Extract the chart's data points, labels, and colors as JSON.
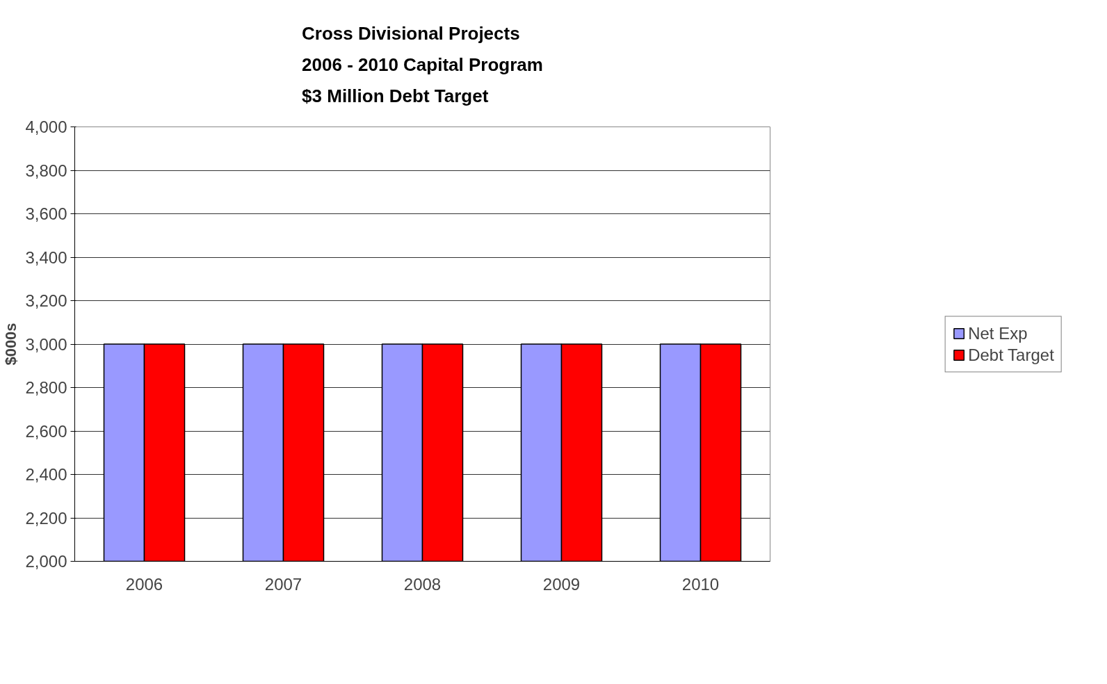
{
  "chart_data": {
    "type": "bar",
    "title": "Cross Divisional Projects\n2006 - 2010 Capital Program\n$3 Million Debt Target",
    "ylabel": "$000s",
    "categories": [
      "2006",
      "2007",
      "2008",
      "2009",
      "2010"
    ],
    "series": [
      {
        "name": "Net Exp",
        "color": "#9999ff",
        "values": [
          3000,
          3000,
          3000,
          3000,
          3000
        ]
      },
      {
        "name": "Debt Target",
        "color": "#ff0000",
        "values": [
          3000,
          3000,
          3000,
          3000,
          3000
        ]
      }
    ],
    "ylim": [
      2000,
      4000
    ],
    "yticks": [
      {
        "value": 2000,
        "label": "2,000"
      },
      {
        "value": 2200,
        "label": "2,200"
      },
      {
        "value": 2400,
        "label": "2,400"
      },
      {
        "value": 2600,
        "label": "2,600"
      },
      {
        "value": 2800,
        "label": "2,800"
      },
      {
        "value": 3000,
        "label": "3,000"
      },
      {
        "value": 3200,
        "label": "3,200"
      },
      {
        "value": 3400,
        "label": "3,400"
      },
      {
        "value": 3600,
        "label": "3,600"
      },
      {
        "value": 3800,
        "label": "3,800"
      },
      {
        "value": 4000,
        "label": "4,000"
      }
    ],
    "grid": "y",
    "legend": "right"
  }
}
